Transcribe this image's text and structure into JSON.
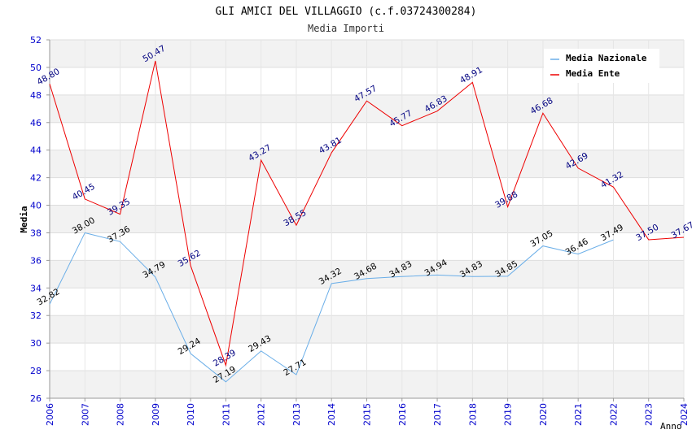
{
  "chart_data": {
    "type": "line",
    "title": "GLI AMICI DEL VILLAGGIO (c.f.03724300284)",
    "subtitle": "Media Importi",
    "ylabel": "Media",
    "xlabel": "Anno",
    "ylim": [
      26,
      52
    ],
    "ytick_step": 2,
    "x": [
      "2006",
      "2007",
      "2008",
      "2009",
      "2010",
      "2011",
      "2012",
      "2013",
      "2014",
      "2015",
      "2016",
      "2017",
      "2018",
      "2019",
      "2020",
      "2021",
      "2022",
      "2023",
      "2024"
    ],
    "grid": true,
    "legend_position": "top-right",
    "series": [
      {
        "name": "Media Nazionale",
        "color": "#6aaee8",
        "label_class": "lbl-naz",
        "values": [
          32.82,
          38.0,
          37.36,
          34.79,
          29.24,
          27.19,
          29.43,
          27.71,
          34.32,
          34.68,
          34.83,
          34.94,
          34.83,
          34.85,
          37.05,
          36.46,
          37.49,
          null,
          null
        ],
        "labels": [
          "32.82",
          "38.00",
          "37.36",
          "34.79",
          "29.24",
          "27.19",
          "29.43",
          "27.71",
          "34.32",
          "34.68",
          "34.83",
          "34.94",
          "34.83",
          "34.85",
          "37.05",
          "36.46",
          "37.49",
          null,
          null
        ]
      },
      {
        "name": "Media Ente",
        "color": "#ee0000",
        "label_class": "lbl-ente",
        "values": [
          48.8,
          40.45,
          39.35,
          50.47,
          35.62,
          28.39,
          43.27,
          38.55,
          43.81,
          47.57,
          45.77,
          46.83,
          48.91,
          39.88,
          46.68,
          42.69,
          41.32,
          37.5,
          37.67
        ],
        "labels": [
          "48.80",
          "40.45",
          "39.35",
          "50.47",
          "35.62",
          "28.39",
          "43.27",
          "38.55",
          "43.81",
          "47.57",
          "45.77",
          "46.83",
          "48.91",
          "39.88",
          "46.68",
          "42.69",
          "41.32",
          "37.50",
          "37.67"
        ]
      }
    ]
  }
}
